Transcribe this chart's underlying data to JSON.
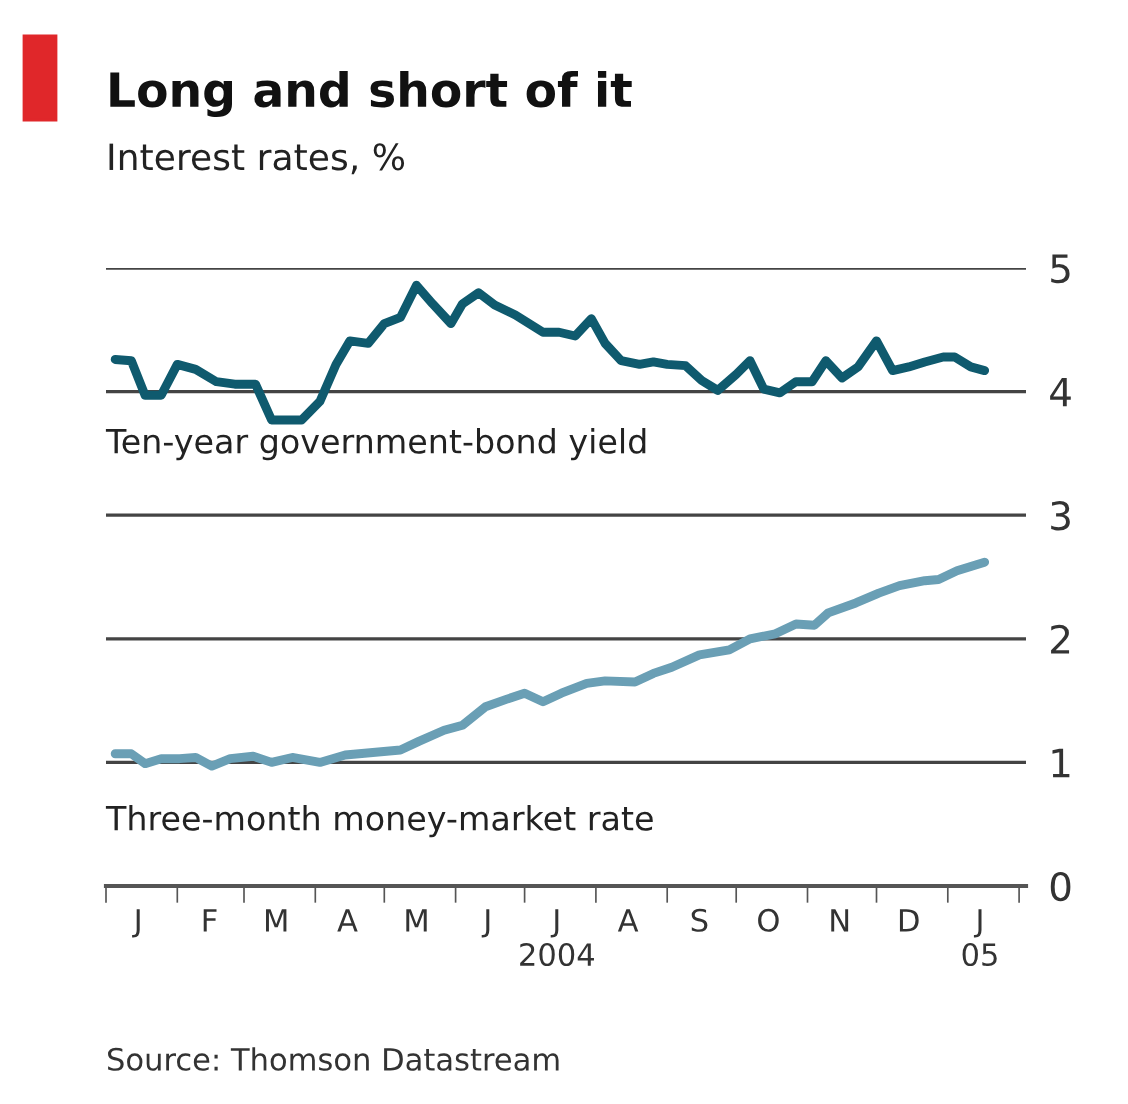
{
  "chart_data": {
    "type": "line",
    "title": "Long and short of it",
    "subtitle": "Interest rates, %",
    "annotations": [
      "Source: Thomson Datastream"
    ],
    "xlim": [
      "2004-01-01",
      "2005-02-04"
    ],
    "xticks": [
      {
        "value": "2004-01-01",
        "label": null
      },
      {
        "value": "2004-01-15",
        "label": "J"
      },
      {
        "value": "2004-02-01",
        "label": null
      },
      {
        "value": "2004-02-15",
        "label": "F"
      },
      {
        "value": "2004-03-01",
        "label": null
      },
      {
        "value": "2004-03-15",
        "label": "M"
      },
      {
        "value": "2004-04-01",
        "label": null
      },
      {
        "value": "2004-04-15",
        "label": "A"
      },
      {
        "value": "2004-05-01",
        "label": null
      },
      {
        "value": "2004-05-15",
        "label": "M"
      },
      {
        "value": "2004-06-01",
        "label": null
      },
      {
        "value": "2004-06-15",
        "label": "J"
      },
      {
        "value": "2004-07-01",
        "label": null
      },
      {
        "value": "2004-07-15",
        "label": "J\n2004"
      },
      {
        "value": "2004-08-01",
        "label": null
      },
      {
        "value": "2004-08-15",
        "label": "A"
      },
      {
        "value": "2004-09-01",
        "label": null
      },
      {
        "value": "2004-09-15",
        "label": "S"
      },
      {
        "value": "2004-10-01",
        "label": null
      },
      {
        "value": "2004-10-15",
        "label": "O"
      },
      {
        "value": "2004-11-01",
        "label": null
      },
      {
        "value": "2004-11-15",
        "label": "N"
      },
      {
        "value": "2004-12-01",
        "label": null
      },
      {
        "value": "2004-12-15",
        "label": "D"
      },
      {
        "value": "2005-01-01",
        "label": null
      },
      {
        "value": "2005-01-15",
        "label": "J\n05"
      },
      {
        "value": "2005-02-01",
        "label": null
      }
    ],
    "ylim": [
      0,
      5
    ],
    "yticks": [
      0,
      1,
      2,
      3,
      4,
      5
    ],
    "grid": "y",
    "legend": false,
    "marker": "none",
    "line_style": "solid",
    "series": [
      {
        "name": "Ten-year government-bond yield",
        "color": "#0f5a6e",
        "x": [
          "2004-01-05",
          "2004-01-12",
          "2004-01-18",
          "2004-01-25",
          "2004-02-01",
          "2004-02-09",
          "2004-02-18",
          "2004-02-26",
          "2004-03-06",
          "2004-03-13",
          "2004-03-26",
          "2004-04-03",
          "2004-04-10",
          "2004-04-16",
          "2004-04-24",
          "2004-05-01",
          "2004-05-08",
          "2004-05-15",
          "2004-05-22",
          "2004-05-30",
          "2004-06-04",
          "2004-06-11",
          "2004-06-18",
          "2004-06-27",
          "2004-07-09",
          "2004-07-16",
          "2004-07-23",
          "2004-07-30",
          "2004-08-05",
          "2004-08-12",
          "2004-08-20",
          "2004-08-26",
          "2004-09-01",
          "2004-09-09",
          "2004-09-16",
          "2004-09-23",
          "2004-10-01",
          "2004-10-07",
          "2004-10-13",
          "2004-10-20",
          "2004-10-27",
          "2004-11-03",
          "2004-11-09",
          "2004-11-16",
          "2004-11-23",
          "2004-12-01",
          "2004-12-08",
          "2004-12-15",
          "2004-12-22",
          "2004-12-30",
          "2005-01-04",
          "2005-01-11",
          "2005-01-17"
        ],
        "values": [
          4.26,
          4.25,
          3.97,
          3.97,
          4.22,
          4.18,
          4.08,
          4.06,
          4.06,
          3.77,
          3.77,
          3.92,
          4.22,
          4.41,
          4.39,
          4.55,
          4.6,
          4.86,
          4.71,
          4.55,
          4.71,
          4.8,
          4.7,
          4.62,
          4.48,
          4.48,
          4.45,
          4.59,
          4.39,
          4.25,
          4.22,
          4.24,
          4.22,
          4.21,
          4.09,
          4.01,
          4.14,
          4.25,
          4.02,
          3.99,
          4.08,
          4.08,
          4.25,
          4.11,
          4.2,
          4.41,
          4.17,
          4.2,
          4.24,
          4.28,
          4.28,
          4.2,
          4.17
        ]
      },
      {
        "name": "Three-month money-market rate",
        "color": "#6a9fb5",
        "x": [
          "2004-01-05",
          "2004-01-12",
          "2004-01-18",
          "2004-01-25",
          "2004-02-02",
          "2004-02-09",
          "2004-02-16",
          "2004-02-24",
          "2004-03-05",
          "2004-03-13",
          "2004-03-22",
          "2004-04-03",
          "2004-04-14",
          "2004-04-26",
          "2004-05-08",
          "2004-05-16",
          "2004-05-27",
          "2004-06-04",
          "2004-06-14",
          "2004-06-23",
          "2004-07-01",
          "2004-07-09",
          "2004-07-17",
          "2004-07-28",
          "2004-08-05",
          "2004-08-18",
          "2004-08-26",
          "2004-09-03",
          "2004-09-15",
          "2004-09-28",
          "2004-10-07",
          "2004-10-18",
          "2004-10-27",
          "2004-11-04",
          "2004-11-10",
          "2004-11-22",
          "2004-12-02",
          "2004-12-11",
          "2004-12-22",
          "2004-12-28",
          "2005-01-05",
          "2005-01-17"
        ],
        "values": [
          1.07,
          1.07,
          0.99,
          1.03,
          1.03,
          1.04,
          0.97,
          1.03,
          1.05,
          1.0,
          1.04,
          1.0,
          1.06,
          1.08,
          1.1,
          1.17,
          1.26,
          1.3,
          1.45,
          1.51,
          1.56,
          1.49,
          1.56,
          1.64,
          1.66,
          1.65,
          1.72,
          1.77,
          1.87,
          1.91,
          2.0,
          2.04,
          2.12,
          2.11,
          2.21,
          2.29,
          2.37,
          2.43,
          2.47,
          2.48,
          2.55,
          2.62
        ]
      }
    ]
  }
}
